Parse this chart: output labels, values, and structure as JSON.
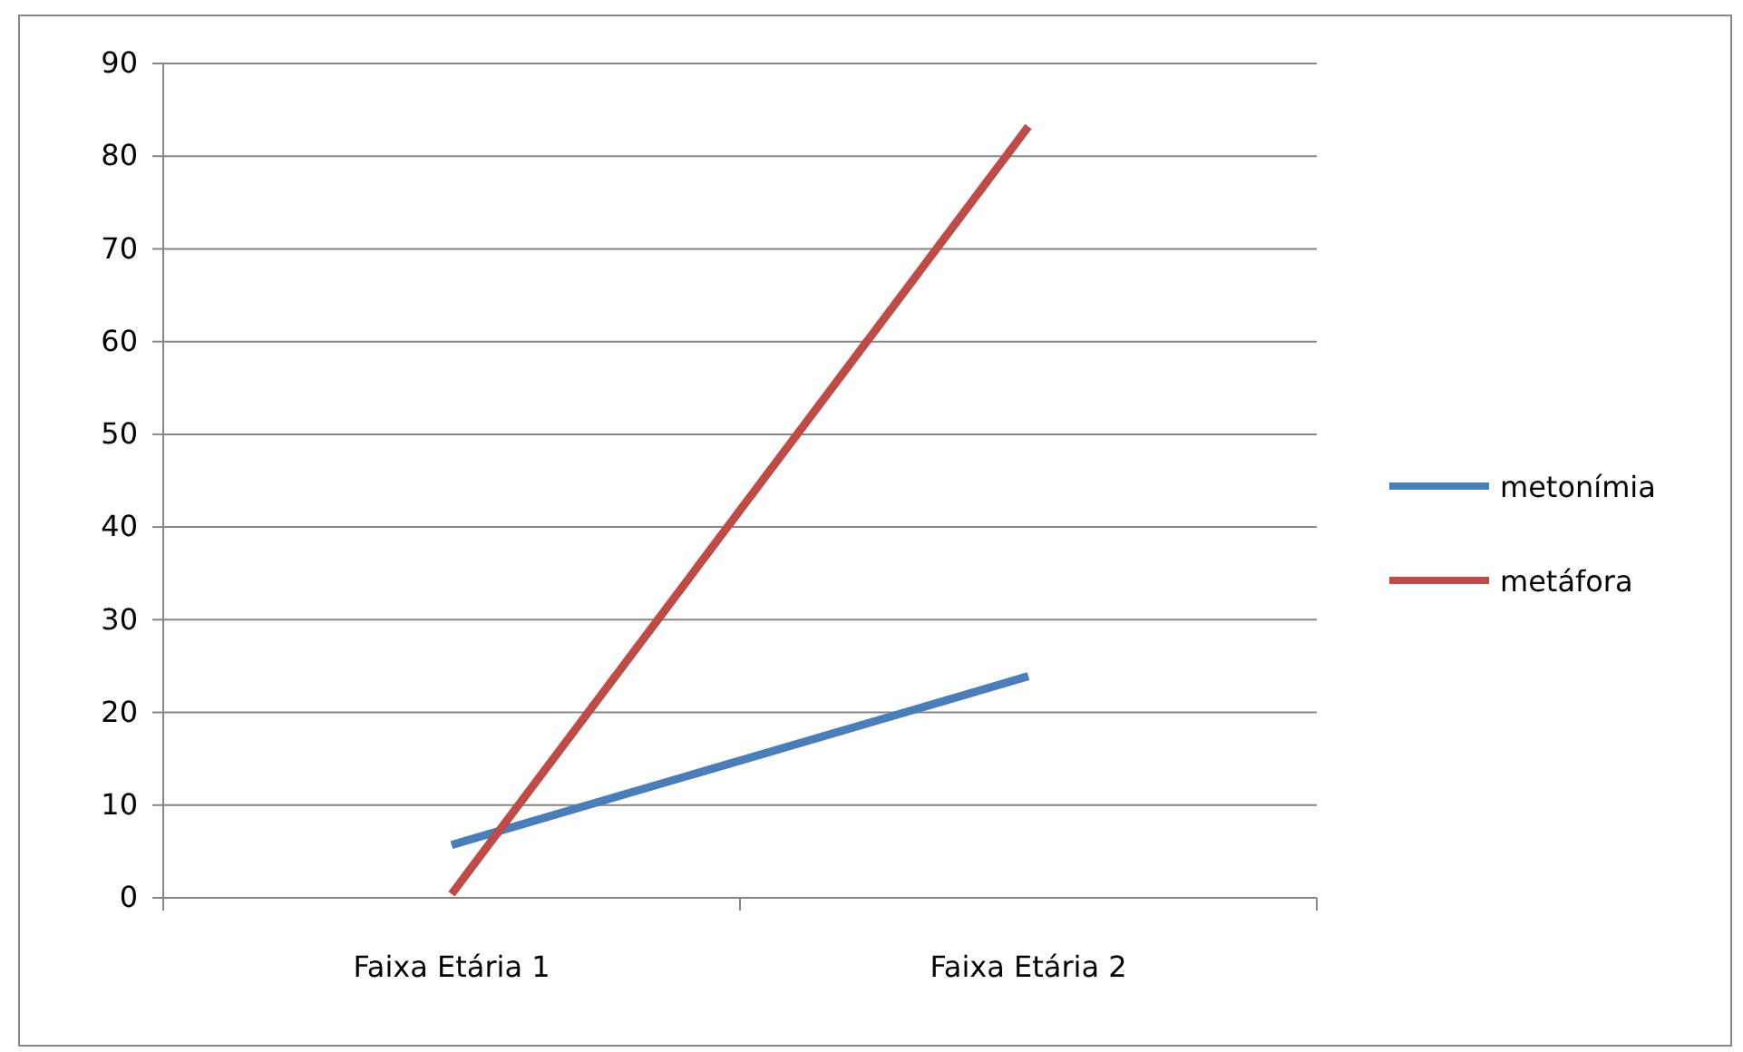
{
  "chart_data": {
    "type": "line",
    "categories": [
      "Faixa Etária 1",
      "Faixa Etária 2"
    ],
    "series": [
      {
        "name": "metonímia",
        "color": "#4a7ebb",
        "values": [
          5.7,
          23.9
        ]
      },
      {
        "name": "metáfora",
        "color": "#be4b48",
        "values": [
          0.4,
          83.2
        ]
      }
    ],
    "ylim": [
      0,
      90
    ],
    "yticks": [
      0,
      10,
      20,
      30,
      40,
      50,
      60,
      70,
      80,
      90
    ],
    "grid": "y",
    "legend": "right",
    "marker": "none",
    "line_style": "solid"
  }
}
